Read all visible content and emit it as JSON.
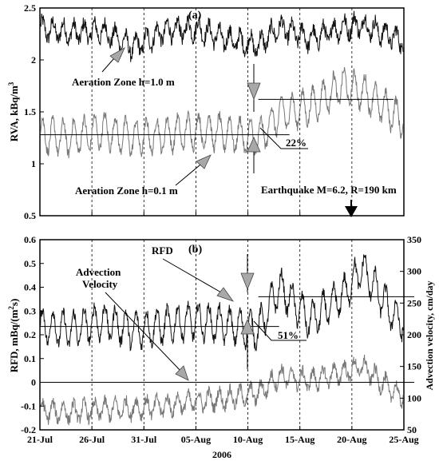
{
  "chart_data": [
    {
      "panel_label": "(a)",
      "type": "line",
      "ylabel": "RVA, kBq/m",
      "ylabel_superscript": "3",
      "ylim": [
        0.5,
        2.5
      ],
      "yticks": [
        "0.5",
        "1",
        "1.5",
        "2",
        "2.5"
      ],
      "xlim_day": [
        21,
        56
      ],
      "series": [
        {
          "level": 2.23,
          "amp": 0.09,
          "noise": 0.07,
          "color": "#111111",
          "x": [
            "21-Jul",
            "24-Jul",
            "27-Jul",
            "30-Jul",
            "2-Aug",
            "5-Aug",
            "8-Aug",
            "11-Aug",
            "13-Aug",
            "16-Aug",
            "19-Aug",
            "21-Aug",
            "24-Aug",
            "27-Aug"
          ],
          "y": [
            2.3,
            2.26,
            2.28,
            2.12,
            2.28,
            2.3,
            2.2,
            2.14,
            2.31,
            2.2,
            2.31,
            2.34,
            2.22,
            2.1
          ]
        },
        {
          "level": 1.28,
          "amp": 0.16,
          "noise": 0.05,
          "color": "#777777",
          "x": [
            "21-Jul",
            "24-Jul",
            "27-Jul",
            "30-Jul",
            "2-Aug",
            "5-Aug",
            "8-Aug",
            "11-Aug",
            "13-Aug",
            "16-Aug",
            "19-Aug",
            "21-Aug",
            "24-Aug",
            "27-Aug"
          ],
          "y": [
            1.28,
            1.25,
            1.32,
            1.25,
            1.28,
            1.32,
            1.3,
            1.24,
            1.48,
            1.55,
            1.75,
            1.7,
            1.48,
            1.28
          ]
        }
      ],
      "mean_lines": [
        {
          "from": "21-Jul",
          "to": "14-Aug",
          "y": 1.28
        },
        {
          "from": "11-Aug",
          "to": "24-Aug",
          "y": 1.62
        }
      ],
      "annotations": {
        "aeration_1": "Aeration Zone h=1.0 m",
        "aeration_2": "Aeration Zone h=0.1 m",
        "percent": "22%",
        "earthquake": "Earthquake M=6.2, R=190 km"
      }
    },
    {
      "panel_label": "(b)",
      "type": "line",
      "ylabel": "RFD, mBq/(m",
      "ylabel_superscript": "2",
      "ylabel_suffix": "s)",
      "ylim": [
        -0.2,
        0.6
      ],
      "yticks": [
        "-0.2",
        "-0.1",
        "0",
        "0.1",
        "0.2",
        "0.3",
        "0.4",
        "0.5",
        "0.6"
      ],
      "y2label": "Advection velocity, cm/day",
      "y2lim": [
        50,
        350
      ],
      "y2ticks": [
        "50",
        "100",
        "150",
        "200",
        "250",
        "300",
        "350"
      ],
      "xlim_day": [
        21,
        56
      ],
      "xticks": [
        "21-Jul",
        "26-Jul",
        "31-Jul",
        "05-Aug",
        "10-Aug",
        "15-Aug",
        "20-Aug",
        "25-Aug"
      ],
      "xlabel": "2006",
      "series": [
        {
          "name": "RFD",
          "axis": "left",
          "level": 0.23,
          "amp": 0.07,
          "noise": 0.025,
          "color": "#111111",
          "x": [
            "21-Jul",
            "24-Jul",
            "27-Jul",
            "30-Jul",
            "2-Aug",
            "5-Aug",
            "8-Aug",
            "11-Aug",
            "13-Aug",
            "16-Aug",
            "19-Aug",
            "21-Aug",
            "24-Aug",
            "27-Aug"
          ],
          "y": [
            0.24,
            0.22,
            0.26,
            0.22,
            0.24,
            0.26,
            0.24,
            0.22,
            0.4,
            0.26,
            0.36,
            0.48,
            0.28,
            0.2
          ]
        },
        {
          "name": "Advection Velocity",
          "axis": "right",
          "level": 80,
          "amp": 14,
          "noise": 9,
          "color": "#777777",
          "x": [
            "21-Jul",
            "24-Jul",
            "27-Jul",
            "30-Jul",
            "2-Aug",
            "5-Aug",
            "8-Aug",
            "11-Aug",
            "13-Aug",
            "16-Aug",
            "19-Aug",
            "21-Aug",
            "24-Aug",
            "27-Aug"
          ],
          "y": [
            80,
            78,
            82,
            84,
            88,
            95,
            100,
            108,
            135,
            128,
            140,
            150,
            110,
            90
          ]
        }
      ],
      "mean_lines": [
        {
          "from": "21-Jul",
          "to": "13-Aug",
          "y": 0.235
        },
        {
          "from": "11-Aug",
          "to": "26-Aug",
          "y": 0.36
        },
        {
          "from": "21-Jul",
          "to": "26-Aug",
          "y": 0.0
        }
      ],
      "annotations": {
        "rfd": "RFD",
        "advection_1": "Advection",
        "advection_2": "Velocity",
        "percent": "51%"
      }
    }
  ]
}
